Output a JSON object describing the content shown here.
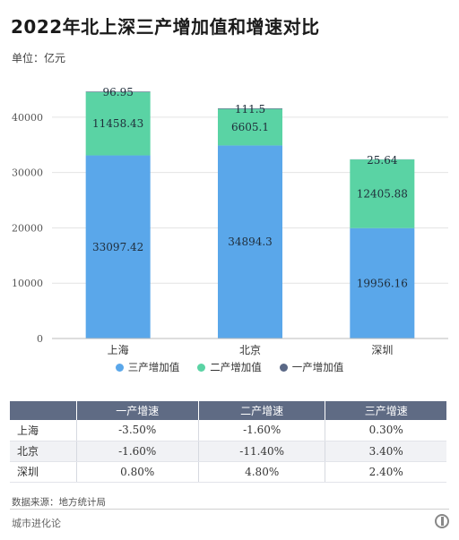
{
  "title": "2022年北上深三产增加值和增速对比",
  "unit_label": "单位：亿元",
  "colors": {
    "tertiary": "#5aa7ea",
    "secondary": "#5ad3a4",
    "primary": "#5a6886",
    "table_header": "#5f6b84"
  },
  "chart_data": {
    "type": "bar",
    "stacked": true,
    "categories": [
      "上海",
      "北京",
      "深圳"
    ],
    "series": [
      {
        "name": "三产增加值",
        "values": [
          33097.42,
          34894.3,
          19956.16
        ],
        "labels": [
          "33097.42",
          "34894.3",
          "19956.16"
        ]
      },
      {
        "name": "二产增加值",
        "values": [
          11458.43,
          6605.1,
          12405.88
        ],
        "labels": [
          "11458.43",
          "6605.1",
          "12405.88"
        ]
      },
      {
        "name": "一产增加值",
        "values": [
          96.95,
          111.5,
          25.64
        ],
        "labels": [
          "96.95",
          "111.5",
          "25.64"
        ]
      }
    ],
    "ylim": [
      0,
      45000
    ],
    "yticks": [
      0,
      10000,
      20000,
      30000,
      40000
    ],
    "ytick_labels": [
      "0",
      "10000",
      "20000",
      "30000",
      "40000"
    ],
    "grid": true,
    "legend_position": "bottom"
  },
  "table": {
    "headers": [
      "",
      "一产增速",
      "二产增速",
      "三产增速"
    ],
    "rows": [
      [
        "上海",
        "-3.50%",
        "-1.60%",
        "0.30%"
      ],
      [
        "北京",
        "-1.60%",
        "-11.40%",
        "3.40%"
      ],
      [
        "深圳",
        "0.80%",
        "4.80%",
        "2.40%"
      ]
    ]
  },
  "source": "数据来源：地方统计局",
  "brand": "城市进化论"
}
